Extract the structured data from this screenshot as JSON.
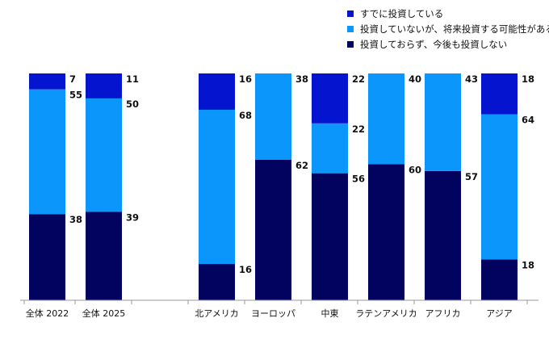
{
  "chart_data": {
    "type": "bar",
    "stacked": true,
    "percent": true,
    "categories": [
      "全体 2022",
      "全体 2025",
      "北アメリカ",
      "ヨーロッパ",
      "中東",
      "ラテンアメリカ",
      "アフリカ",
      "アジア"
    ],
    "series": [
      {
        "name": "投資しておらず、今後も投資しない",
        "color": "#02035f",
        "values": [
          38,
          39,
          16,
          62,
          56,
          60,
          57,
          18
        ]
      },
      {
        "name": "投資していないが、将来投資する可能性がある",
        "color": "#0a96fb",
        "values": [
          55,
          50,
          68,
          38,
          22,
          40,
          43,
          64
        ]
      },
      {
        "name": "すでに投資している",
        "color": "#0514cf",
        "values": [
          7,
          11,
          16,
          null,
          22,
          null,
          null,
          18
        ]
      }
    ],
    "legend_order": [
      2,
      1,
      0
    ],
    "legend_position": "top-right",
    "ylim": [
      0,
      100
    ],
    "grid": false
  }
}
